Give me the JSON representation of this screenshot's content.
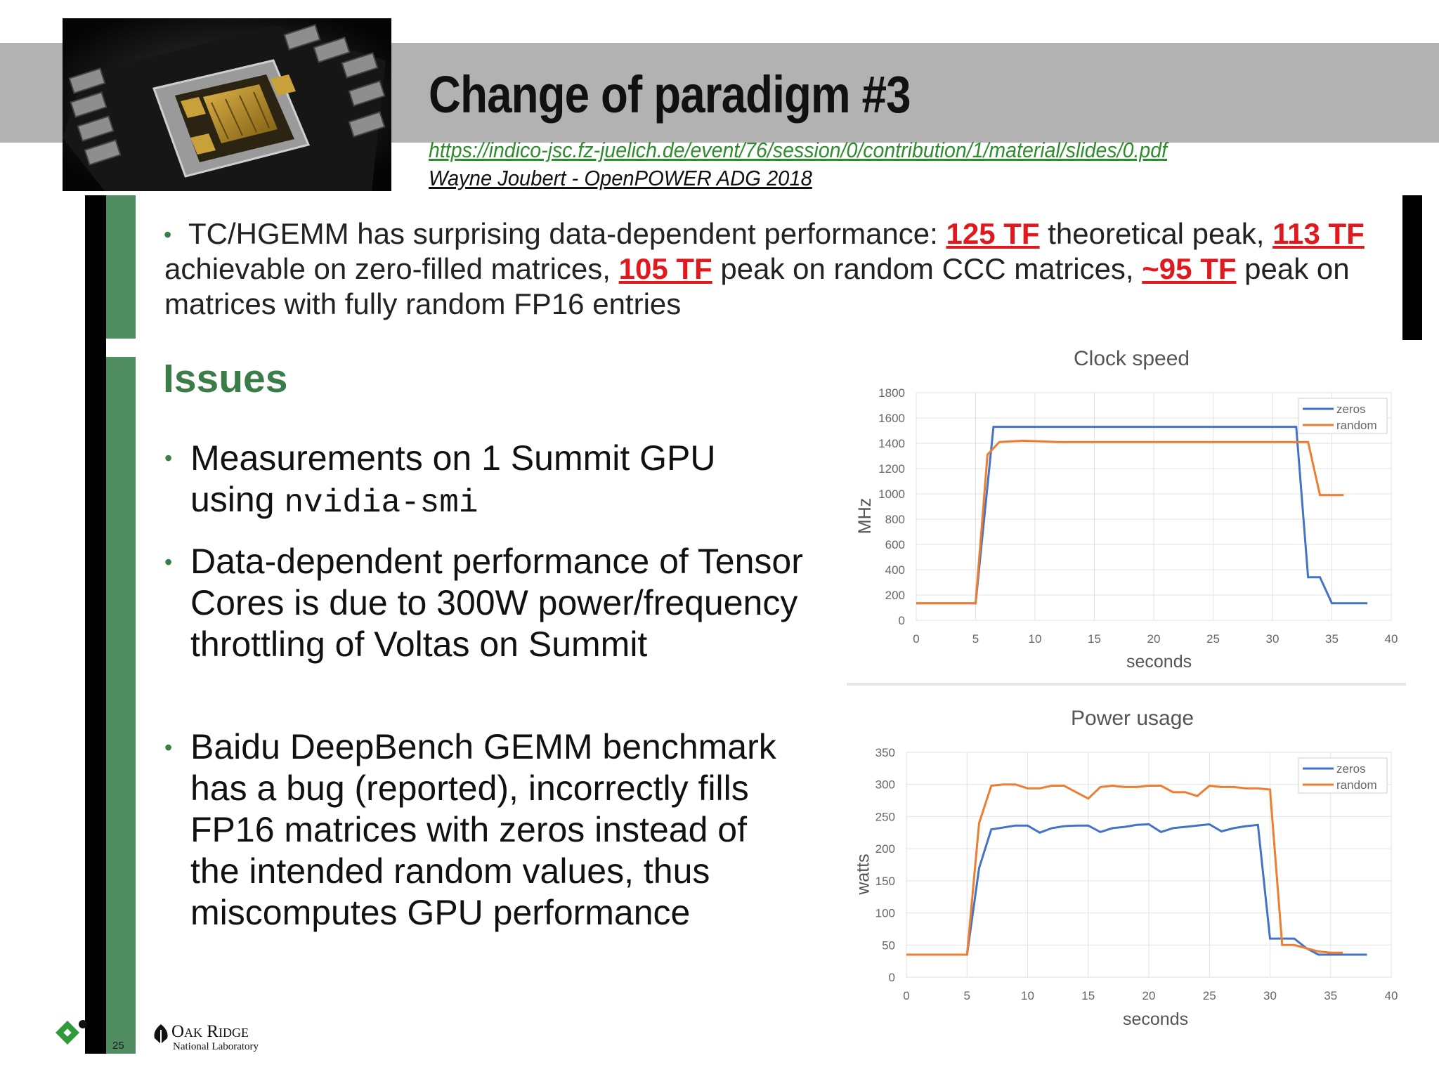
{
  "title": "Change of paradigm #3",
  "source_link": "https://indico-jsc.fz-juelich.de/event/76/session/0/contribution/1/material/slides/0.pdf",
  "author": "Wayne Joubert - OpenPOWER ADG 2018",
  "top_bullet": {
    "p1": "TC/HGEMM has surprising data-dependent performance: ",
    "h1": "125 TF",
    "p2": " theoretical peak, ",
    "h2": "113 TF",
    "p3": " achievable on zero-filled matrices, ",
    "h3": "105 TF",
    "p4": " peak on random CCC matrices, ",
    "h4": "~95 TF",
    "p5": " peak on matrices with fully random FP16 entries"
  },
  "issues_heading": "Issues",
  "bullets": {
    "b1_text": "Measurements on 1 Summit GPU using ",
    "b1_code": "nvidia-smi",
    "b2": "Data-dependent performance of Tensor Cores is due to 300W power/frequency throttling of Voltas on Summit",
    "b3": "Baidu DeepBench GEMM benchmark has a bug (reported), incorrectly fills FP16 matrices with zeros instead of the intended random values, thus miscomputes GPU performance"
  },
  "footer": {
    "slide_number": "25",
    "logo_name": "Oak Ridge",
    "logo_sub": "National Laboratory"
  },
  "colors": {
    "zeros": "#4472c4",
    "random": "#ed7d31",
    "accent_green": "#3a7d48",
    "highlight_red": "#e0191e"
  },
  "chart_data": [
    {
      "type": "line",
      "title": "Clock speed",
      "xlabel": "seconds",
      "ylabel": "MHz",
      "xlim": [
        0,
        40
      ],
      "ylim": [
        0,
        1800
      ],
      "xticks": [
        0,
        5,
        10,
        15,
        20,
        25,
        30,
        35,
        40
      ],
      "yticks": [
        0,
        200,
        400,
        600,
        800,
        1000,
        1200,
        1400,
        1600,
        1800
      ],
      "grid": true,
      "legend": "top-right",
      "series": [
        {
          "name": "zeros",
          "x": [
            0,
            5,
            6.5,
            32,
            33,
            34,
            35,
            38
          ],
          "y": [
            135,
            135,
            1530,
            1530,
            340,
            340,
            135,
            135
          ]
        },
        {
          "name": "random",
          "x": [
            0,
            5,
            6,
            7,
            9,
            12,
            20,
            25,
            32,
            33,
            34,
            36
          ],
          "y": [
            135,
            135,
            1310,
            1410,
            1420,
            1410,
            1410,
            1410,
            1410,
            1410,
            990,
            990
          ]
        }
      ]
    },
    {
      "type": "line",
      "title": "Power usage",
      "xlabel": "seconds",
      "ylabel": "watts",
      "xlim": [
        0,
        40
      ],
      "ylim": [
        0,
        350
      ],
      "xticks": [
        0,
        5,
        10,
        15,
        20,
        25,
        30,
        35,
        40
      ],
      "yticks": [
        0,
        50,
        100,
        150,
        200,
        250,
        300,
        350
      ],
      "grid": true,
      "legend": "top-right",
      "series": [
        {
          "name": "zeros",
          "x": [
            0,
            5,
            6,
            7,
            8,
            9,
            10,
            11,
            12,
            13,
            14,
            15,
            16,
            17,
            18,
            19,
            20,
            21,
            22,
            23,
            24,
            25,
            26,
            27,
            28,
            29,
            30,
            31,
            32,
            33,
            34,
            38
          ],
          "y": [
            35,
            35,
            170,
            230,
            233,
            236,
            236,
            225,
            232,
            235,
            236,
            236,
            226,
            232,
            234,
            237,
            238,
            226,
            232,
            234,
            236,
            238,
            227,
            232,
            235,
            237,
            60,
            60,
            60,
            45,
            35,
            35
          ]
        },
        {
          "name": "random",
          "x": [
            0,
            5,
            6,
            7,
            8,
            9,
            10,
            11,
            12,
            13,
            14,
            15,
            16,
            17,
            18,
            19,
            20,
            21,
            22,
            23,
            24,
            25,
            26,
            27,
            28,
            29,
            30,
            31,
            32,
            33,
            34,
            35,
            36
          ],
          "y": [
            35,
            35,
            240,
            298,
            300,
            300,
            294,
            294,
            298,
            298,
            288,
            278,
            296,
            298,
            296,
            296,
            298,
            298,
            288,
            288,
            282,
            298,
            296,
            296,
            294,
            294,
            292,
            50,
            50,
            45,
            40,
            38,
            38
          ]
        }
      ]
    }
  ]
}
